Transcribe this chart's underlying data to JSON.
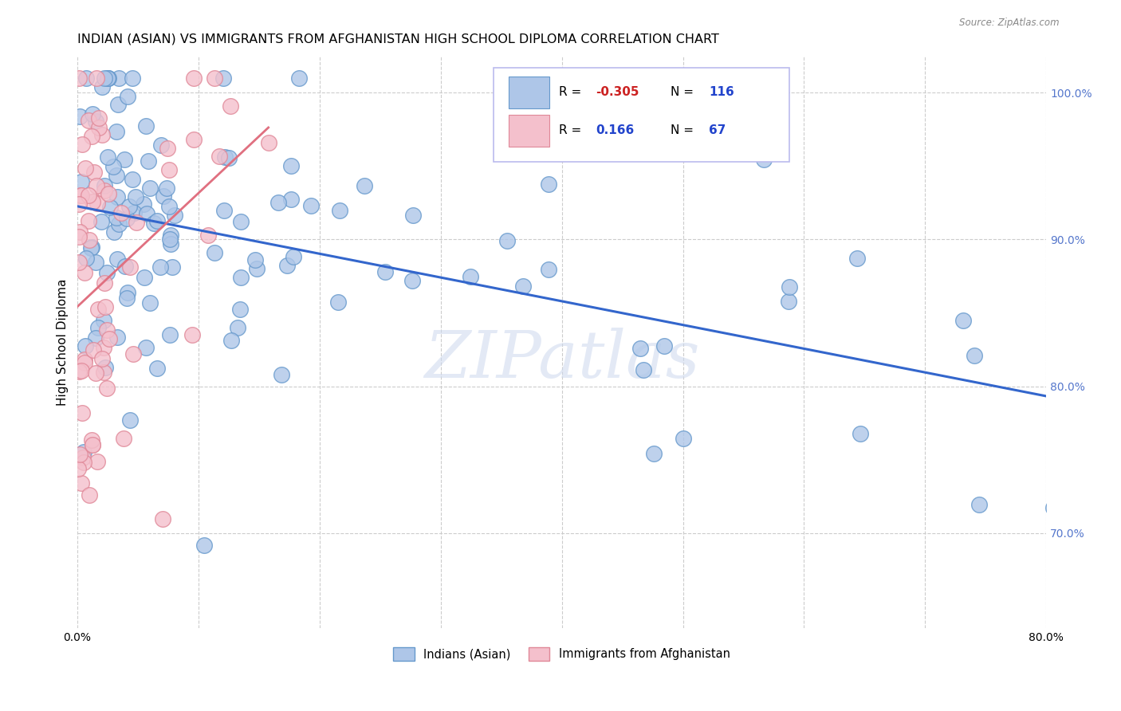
{
  "title": "INDIAN (ASIAN) VS IMMIGRANTS FROM AFGHANISTAN HIGH SCHOOL DIPLOMA CORRELATION CHART",
  "source": "Source: ZipAtlas.com",
  "ylabel": "High School Diploma",
  "xlim": [
    0.0,
    0.8
  ],
  "ylim": [
    0.635,
    1.025
  ],
  "ytick_values": [
    0.7,
    0.8,
    0.9,
    1.0
  ],
  "blue_color_face": "#aec6e8",
  "blue_color_edge": "#6699cc",
  "pink_color_face": "#f4c0cc",
  "pink_color_edge": "#e08898",
  "blue_line_color": "#3366cc",
  "pink_line_color": "#e07080",
  "dashed_line_color": "#bbbbbb",
  "grid_color": "#cccccc",
  "right_tick_color": "#5577cc",
  "watermark": "ZIPatlas",
  "title_fontsize": 11.5,
  "axis_label_fontsize": 11,
  "tick_fontsize": 10,
  "legend_R1": "-0.305",
  "legend_N1": "116",
  "legend_R2": "0.166",
  "legend_N2": "67",
  "legend_label1": "Indians (Asian)",
  "legend_label2": "Immigrants from Afghanistan",
  "seed": 123
}
